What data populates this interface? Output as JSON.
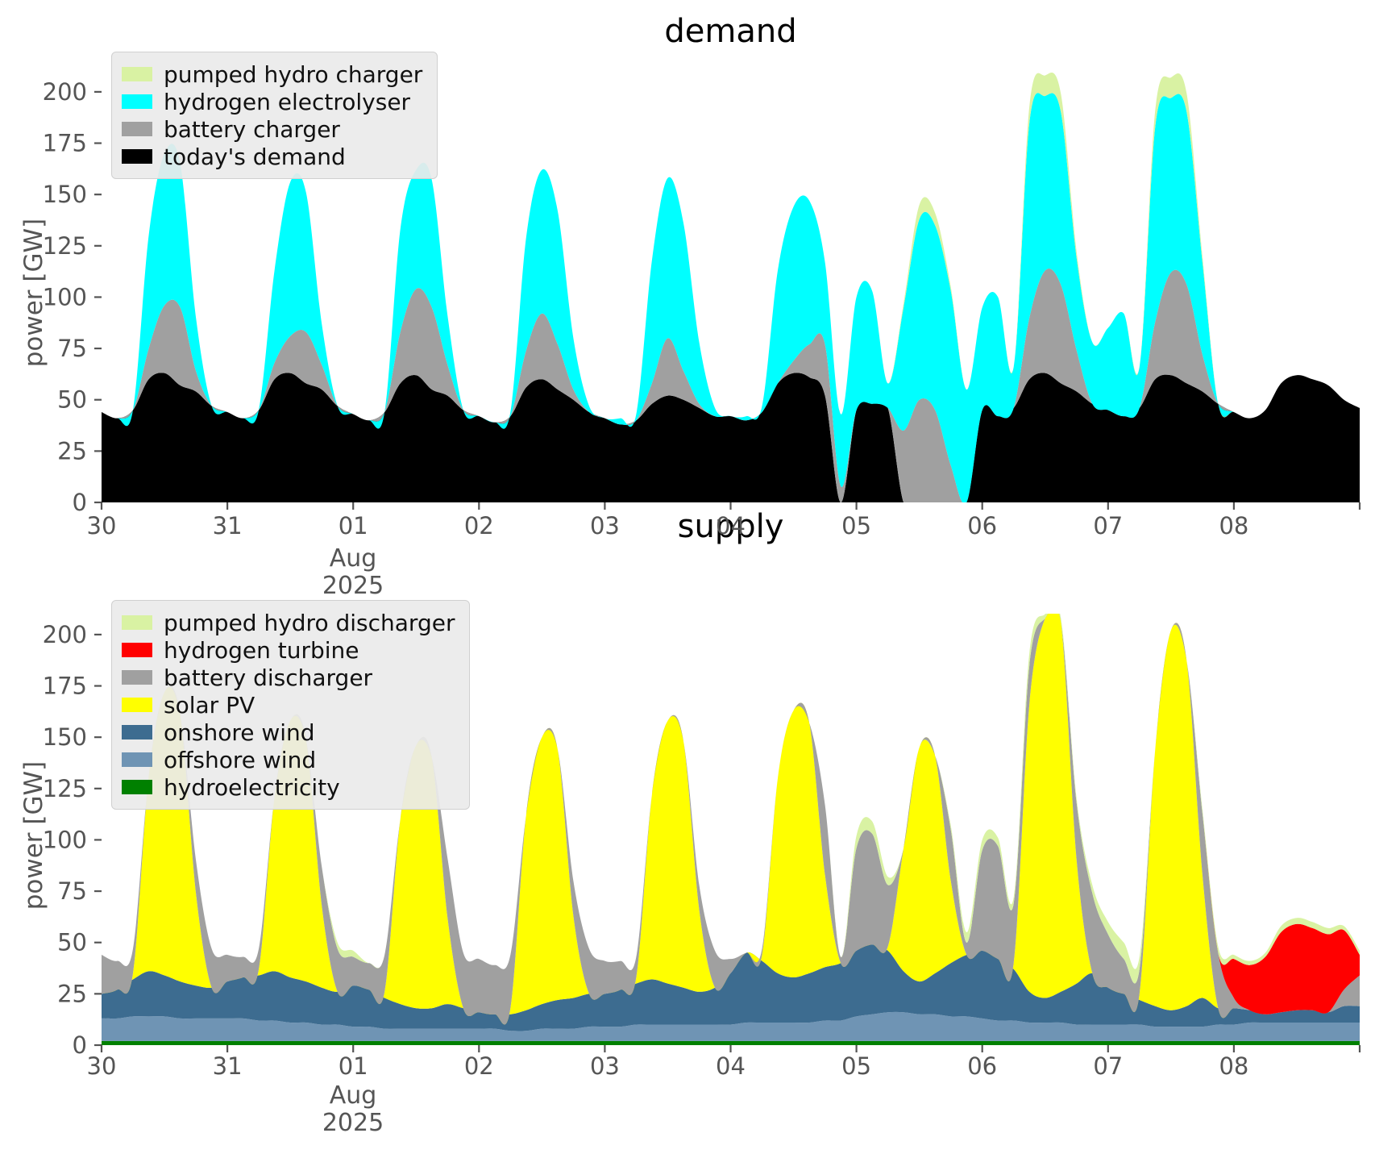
{
  "figure": {
    "demand_title": "demand",
    "supply_title": "supply",
    "ylabel": "power [GW]",
    "month_label_line1": "Aug",
    "month_label_line2": "2025",
    "colors": {
      "axis_text": "#555555",
      "title_text": "#000000",
      "legend_bg": "#eaeaea",
      "pumped_hydro": "#d9f2a3",
      "hydrogen_electrolyser": "#00ffff",
      "battery": "#a0a0a0",
      "demand_black": "#000000",
      "hydrogen_turbine": "#ff0000",
      "solar_pv": "#ffff00",
      "onshore_wind": "#3d6c90",
      "offshore_wind": "#6f94b4",
      "hydroelectricity": "#008000"
    }
  },
  "chart_data": [
    {
      "type": "area",
      "stacked": true,
      "title": "demand",
      "ylabel": "power [GW]",
      "ylim": [
        0,
        208.6
      ],
      "yticks": [
        0,
        25,
        50,
        75,
        100,
        125,
        150,
        175,
        200
      ],
      "x_tick_labels": [
        "30",
        "31",
        "01",
        "02",
        "03",
        "04",
        "05",
        "06",
        "07",
        "08"
      ],
      "x_start": "2025-07-30 00:00",
      "x_step_hours": 3,
      "grid": false,
      "legend_position": "upper left",
      "legend_top_to_bottom": [
        "pumped hydro charger",
        "hydrogen electrolyser",
        "battery charger",
        "today's demand"
      ],
      "series": [
        {
          "name": "today's demand",
          "color": "#000000",
          "values": [
            44,
            41,
            45,
            60,
            63,
            57,
            54,
            47,
            44,
            41,
            45,
            60,
            63,
            58,
            55,
            47,
            43,
            40,
            44,
            58,
            62,
            55,
            52,
            45,
            42,
            39,
            42,
            56,
            60,
            55,
            50,
            44,
            41,
            38,
            40,
            48,
            52,
            50,
            46,
            42,
            42,
            40,
            44,
            58,
            63,
            61,
            52,
            0,
            45,
            48,
            46,
            0,
            0,
            0,
            0,
            0,
            45,
            42,
            46,
            60,
            63,
            58,
            54,
            48,
            45,
            42,
            46,
            60,
            62,
            58,
            54,
            48,
            44,
            41,
            45,
            58,
            62,
            60,
            57,
            50,
            46
          ]
        },
        {
          "name": "battery charger",
          "color": "#a0a0a0",
          "values": [
            0,
            0,
            0,
            15,
            33,
            38,
            10,
            0,
            0,
            0,
            0,
            8,
            18,
            25,
            12,
            0,
            0,
            0,
            0,
            25,
            42,
            40,
            15,
            0,
            0,
            0,
            0,
            18,
            32,
            22,
            5,
            0,
            0,
            0,
            0,
            10,
            28,
            14,
            2,
            0,
            0,
            0,
            0,
            0,
            6,
            16,
            25,
            8,
            0,
            0,
            0,
            35,
            50,
            45,
            18,
            0,
            0,
            0,
            0,
            30,
            50,
            48,
            20,
            0,
            0,
            0,
            0,
            28,
            50,
            48,
            18,
            0,
            0,
            0,
            0,
            0,
            0,
            0,
            0,
            0,
            0
          ]
        },
        {
          "name": "hydrogen electrolyser",
          "color": "#00ffff",
          "values": [
            0,
            0,
            0,
            55,
            74,
            70,
            26,
            0,
            0,
            0,
            0,
            45,
            75,
            68,
            20,
            0,
            0,
            0,
            0,
            50,
            58,
            62,
            24,
            0,
            0,
            0,
            2,
            55,
            70,
            65,
            25,
            3,
            0,
            3,
            3,
            60,
            78,
            72,
            30,
            4,
            0,
            2,
            3,
            55,
            75,
            70,
            40,
            35,
            55,
            55,
            12,
            60,
            88,
            90,
            85,
            55,
            50,
            58,
            20,
            95,
            85,
            84,
            45,
            30,
            40,
            50,
            20,
            95,
            85,
            84,
            45,
            0,
            0,
            0,
            0,
            0,
            0,
            0,
            0,
            0,
            0
          ]
        },
        {
          "name": "pumped hydro charger",
          "color": "#d9f2a3",
          "values": [
            0,
            0,
            0,
            0,
            0,
            0,
            0,
            0,
            0,
            0,
            0,
            0,
            0,
            0,
            0,
            0,
            0,
            0,
            0,
            0,
            0,
            0,
            0,
            0,
            0,
            0,
            0,
            0,
            0,
            0,
            0,
            0,
            0,
            0,
            0,
            0,
            0,
            0,
            0,
            0,
            0,
            0,
            0,
            0,
            0,
            0,
            0,
            0,
            0,
            0,
            0,
            2,
            7,
            6,
            2,
            0,
            0,
            0,
            0,
            8,
            10,
            9,
            3,
            0,
            0,
            0,
            0,
            8,
            10,
            9,
            3,
            0,
            0,
            0,
            0,
            0,
            0,
            0,
            0,
            0,
            0
          ]
        }
      ]
    },
    {
      "type": "area",
      "stacked": true,
      "title": "supply",
      "ylabel": "power [GW]",
      "ylim": [
        0,
        208.6
      ],
      "yticks": [
        0,
        25,
        50,
        75,
        100,
        125,
        150,
        175,
        200
      ],
      "x_tick_labels": [
        "30",
        "31",
        "01",
        "02",
        "03",
        "04",
        "05",
        "06",
        "07",
        "08"
      ],
      "x_start": "2025-07-30 00:00",
      "x_step_hours": 3,
      "grid": false,
      "legend_position": "upper left",
      "legend_top_to_bottom": [
        "pumped hydro discharger",
        "hydrogen turbine",
        "battery discharger",
        "solar PV",
        "onshore wind",
        "offshore wind",
        "hydroelectricity"
      ],
      "series": [
        {
          "name": "hydroelectricity",
          "color": "#008000",
          "values": [
            2,
            2,
            2,
            2,
            2,
            2,
            2,
            2,
            2,
            2,
            2,
            2,
            2,
            2,
            2,
            2,
            2,
            2,
            2,
            2,
            2,
            2,
            2,
            2,
            2,
            2,
            2,
            2,
            2,
            2,
            2,
            2,
            2,
            2,
            2,
            2,
            2,
            2,
            2,
            2,
            2,
            2,
            2,
            2,
            2,
            2,
            2,
            2,
            2,
            2,
            2,
            2,
            2,
            2,
            2,
            2,
            2,
            2,
            2,
            2,
            2,
            2,
            2,
            2,
            2,
            2,
            2,
            2,
            2,
            2,
            2,
            2,
            2,
            2,
            2,
            2,
            2,
            2,
            2,
            2,
            2
          ]
        },
        {
          "name": "offshore wind",
          "color": "#6f94b4",
          "values": [
            11,
            11,
            12,
            12,
            12,
            11,
            11,
            11,
            11,
            11,
            10,
            10,
            9,
            9,
            8,
            8,
            7,
            7,
            6,
            6,
            6,
            6,
            6,
            6,
            6,
            6,
            5,
            5,
            6,
            6,
            6,
            7,
            7,
            7,
            8,
            8,
            8,
            8,
            8,
            8,
            8,
            9,
            9,
            9,
            9,
            9,
            10,
            10,
            12,
            13,
            14,
            14,
            13,
            13,
            12,
            12,
            11,
            10,
            10,
            9,
            9,
            9,
            8,
            8,
            8,
            8,
            8,
            7,
            7,
            7,
            7,
            8,
            8,
            9,
            9,
            9,
            9,
            9,
            9,
            9,
            9
          ]
        },
        {
          "name": "onshore wind",
          "color": "#3d6c90",
          "values": [
            12,
            14,
            18,
            22,
            20,
            18,
            16,
            15,
            18,
            20,
            22,
            24,
            22,
            20,
            18,
            16,
            20,
            18,
            15,
            12,
            10,
            10,
            12,
            10,
            8,
            7,
            8,
            10,
            12,
            14,
            15,
            16,
            16,
            18,
            20,
            22,
            20,
            18,
            16,
            18,
            25,
            34,
            30,
            24,
            22,
            24,
            26,
            28,
            32,
            34,
            30,
            20,
            16,
            20,
            26,
            30,
            33,
            30,
            25,
            15,
            12,
            15,
            20,
            25,
            18,
            15,
            12,
            10,
            8,
            10,
            14,
            8,
            8,
            6,
            4,
            5,
            6,
            6,
            5,
            8,
            8
          ]
        },
        {
          "name": "solar PV",
          "color": "#ffff00",
          "values": [
            0,
            0,
            3,
            95,
            138,
            130,
            45,
            0,
            0,
            0,
            3,
            85,
            125,
            118,
            40,
            0,
            0,
            0,
            3,
            90,
            128,
            122,
            42,
            0,
            0,
            0,
            3,
            95,
            130,
            122,
            40,
            0,
            0,
            0,
            3,
            90,
            128,
            120,
            40,
            0,
            0,
            0,
            3,
            95,
            130,
            122,
            45,
            0,
            0,
            0,
            2,
            60,
            114,
            106,
            40,
            0,
            0,
            0,
            3,
            140,
            185,
            180,
            60,
            0,
            0,
            0,
            3,
            125,
            185,
            168,
            60,
            0,
            0,
            0,
            0,
            0,
            0,
            0,
            0,
            0,
            0
          ]
        },
        {
          "name": "battery discharger",
          "color": "#a0a0a0",
          "values": [
            19,
            14,
            12,
            0,
            0,
            0,
            16,
            19,
            13,
            10,
            10,
            0,
            0,
            0,
            19,
            21,
            14,
            13,
            18,
            0,
            0,
            0,
            29,
            27,
            26,
            24,
            26,
            0,
            0,
            0,
            17,
            22,
            16,
            14,
            10,
            0,
            0,
            0,
            12,
            18,
            7,
            0,
            3,
            0,
            0,
            0,
            34,
            3,
            50,
            54,
            30,
            0,
            0,
            0,
            25,
            6,
            49,
            55,
            29,
            19,
            0,
            0,
            28,
            39,
            26,
            17,
            12,
            0,
            0,
            0,
            30,
            27,
            5,
            0,
            0,
            0,
            0,
            0,
            0,
            8,
            15
          ]
        },
        {
          "name": "hydrogen turbine",
          "color": "#ff0000",
          "values": [
            0,
            0,
            0,
            0,
            0,
            0,
            0,
            0,
            0,
            0,
            0,
            0,
            0,
            0,
            0,
            0,
            0,
            0,
            0,
            0,
            0,
            0,
            0,
            0,
            0,
            0,
            0,
            0,
            0,
            0,
            0,
            0,
            0,
            0,
            0,
            0,
            0,
            0,
            0,
            0,
            0,
            0,
            0,
            0,
            0,
            0,
            0,
            0,
            0,
            0,
            0,
            0,
            0,
            0,
            0,
            0,
            0,
            0,
            0,
            0,
            0,
            0,
            0,
            0,
            0,
            0,
            0,
            0,
            0,
            0,
            0,
            0,
            19,
            22,
            28,
            39,
            42,
            40,
            38,
            29,
            10
          ]
        },
        {
          "name": "pumped hydro discharger",
          "color": "#d9f2a3",
          "values": [
            0,
            0,
            0,
            0,
            0,
            0,
            0,
            0,
            0,
            0,
            0,
            0,
            0,
            0,
            0,
            3,
            3,
            0,
            0,
            0,
            0,
            0,
            0,
            0,
            0,
            0,
            0,
            0,
            0,
            0,
            0,
            0,
            0,
            0,
            0,
            0,
            0,
            0,
            0,
            0,
            0,
            0,
            0,
            0,
            0,
            0,
            0,
            0,
            6,
            6,
            4,
            0,
            0,
            0,
            2,
            5,
            5,
            4,
            3,
            6,
            2,
            2,
            2,
            4,
            6,
            8,
            6,
            0,
            0,
            0,
            2,
            3,
            2,
            2,
            2,
            3,
            3,
            3,
            3,
            2,
            2
          ]
        }
      ]
    }
  ]
}
